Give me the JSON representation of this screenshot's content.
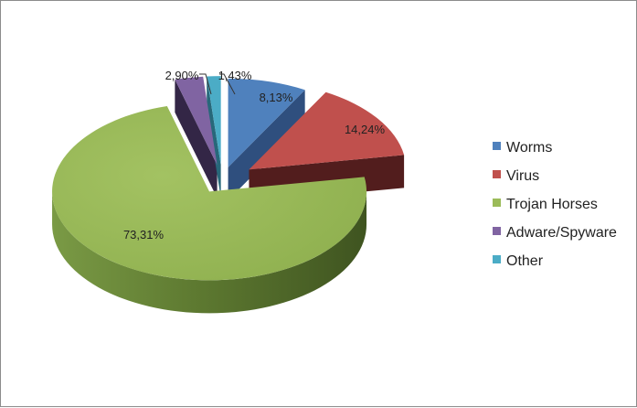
{
  "chart_data": {
    "type": "pie",
    "style": "3d-exploded",
    "title": "",
    "legend_position": "right",
    "slices": [
      {
        "label": "Worms",
        "value": 8.13,
        "value_label": "8,13%",
        "color": "#4f81bd"
      },
      {
        "label": "Virus",
        "value": 14.24,
        "value_label": "14,24%",
        "color": "#c0504d"
      },
      {
        "label": "Trojan Horses",
        "value": 73.31,
        "value_label": "73,31%",
        "color": "#9bbb59"
      },
      {
        "label": "Adware/Spyware",
        "value": 2.9,
        "value_label": "2,90%",
        "color": "#8064a2"
      },
      {
        "label": "Other",
        "value": 1.43,
        "value_label": "1,43%",
        "color": "#4bacc6"
      }
    ]
  }
}
